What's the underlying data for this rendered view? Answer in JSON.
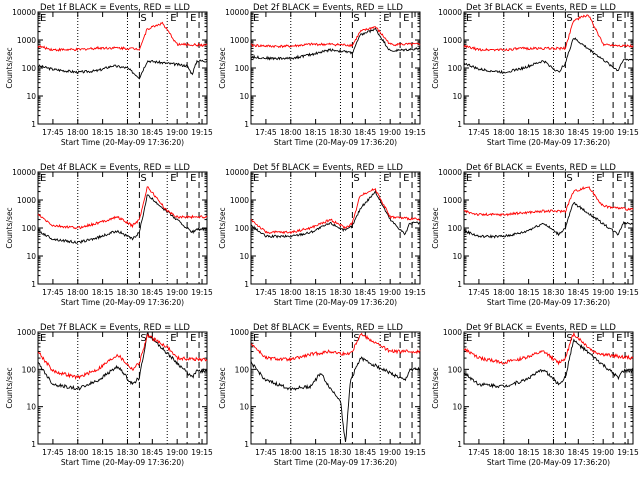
{
  "chart_data": [
    {
      "type": "line",
      "title": "Det 1f BLACK = Events, RED = LLD",
      "xlabel": "Start Time (20-May-09 17:36:20)",
      "ylabel": "Counts/sec",
      "x_ticks": [
        "17:45",
        "18:00",
        "18:15",
        "18:30",
        "18:45",
        "19:00",
        "19:15"
      ],
      "y_ticks": [
        "1",
        "10",
        "100",
        "1000",
        "10000"
      ],
      "scale": "log",
      "markers": [
        "S",
        "E",
        "E"
      ],
      "series": [
        {
          "color": "#000000",
          "points": [
            [
              17.6,
              120
            ],
            [
              17.75,
              90
            ],
            [
              18.0,
              70
            ],
            [
              18.2,
              80
            ],
            [
              18.35,
              120
            ],
            [
              18.5,
              100
            ],
            [
              18.62,
              45
            ],
            [
              18.7,
              180
            ],
            [
              19.1,
              120
            ],
            [
              19.15,
              60
            ],
            [
              19.2,
              180
            ],
            [
              19.3,
              180
            ]
          ]
        },
        {
          "color": "#ff0000",
          "points": [
            [
              17.6,
              600
            ],
            [
              17.75,
              450
            ],
            [
              18.0,
              450
            ],
            [
              18.2,
              520
            ],
            [
              18.4,
              520
            ],
            [
              18.62,
              480
            ],
            [
              18.7,
              2500
            ],
            [
              18.85,
              4000
            ],
            [
              19.0,
              700
            ],
            [
              19.3,
              650
            ]
          ]
        }
      ]
    },
    {
      "type": "line",
      "title": "Det 2f BLACK = Events, RED = LLD",
      "xlabel": "Start Time (20-May-09 17:36:20)",
      "ylabel": "Counts/sec",
      "x_ticks": [
        "17:45",
        "18:00",
        "18:15",
        "18:30",
        "18:45",
        "19:00",
        "19:15"
      ],
      "y_ticks": [
        "1",
        "10",
        "100",
        "1000",
        "10000"
      ],
      "scale": "log",
      "markers": [
        "S",
        "E",
        "E"
      ],
      "series": [
        {
          "color": "#000000",
          "points": [
            [
              17.6,
              250
            ],
            [
              17.8,
              220
            ],
            [
              18.0,
              220
            ],
            [
              18.2,
              300
            ],
            [
              18.4,
              450
            ],
            [
              18.62,
              350
            ],
            [
              18.7,
              1500
            ],
            [
              18.85,
              2500
            ],
            [
              19.0,
              400
            ],
            [
              19.3,
              500
            ]
          ]
        },
        {
          "color": "#ff0000",
          "points": [
            [
              17.6,
              650
            ],
            [
              17.8,
              600
            ],
            [
              18.0,
              600
            ],
            [
              18.2,
              700
            ],
            [
              18.4,
              700
            ],
            [
              18.62,
              650
            ],
            [
              18.7,
              2000
            ],
            [
              18.85,
              3000
            ],
            [
              19.0,
              700
            ],
            [
              19.3,
              700
            ]
          ]
        }
      ]
    },
    {
      "type": "line",
      "title": "Det 3f BLACK = Events, RED = LLD",
      "xlabel": "Start Time (20-May-09 17:36:20)",
      "ylabel": "Counts/sec",
      "x_ticks": [
        "17:45",
        "18:00",
        "18:15",
        "18:30",
        "18:45",
        "19:00",
        "19:15"
      ],
      "y_ticks": [
        "1",
        "10",
        "100",
        "1000",
        "10000"
      ],
      "scale": "log",
      "markers": [
        "S",
        "E",
        "E"
      ],
      "series": [
        {
          "color": "#000000",
          "points": [
            [
              17.6,
              150
            ],
            [
              17.75,
              90
            ],
            [
              18.0,
              70
            ],
            [
              18.2,
              100
            ],
            [
              18.4,
              180
            ],
            [
              18.55,
              70
            ],
            [
              18.62,
              150
            ],
            [
              18.7,
              1200
            ],
            [
              19.15,
              80
            ],
            [
              19.2,
              200
            ],
            [
              19.3,
              200
            ]
          ]
        },
        {
          "color": "#ff0000",
          "points": [
            [
              17.6,
              600
            ],
            [
              17.75,
              450
            ],
            [
              18.0,
              450
            ],
            [
              18.2,
              500
            ],
            [
              18.4,
              500
            ],
            [
              18.62,
              500
            ],
            [
              18.7,
              5000
            ],
            [
              18.85,
              8000
            ],
            [
              19.0,
              700
            ],
            [
              19.3,
              600
            ]
          ]
        }
      ]
    },
    {
      "type": "line",
      "title": "Det 4f BLACK = Events, RED = LLD",
      "xlabel": "Start Time (20-May-09 17:36:20)",
      "ylabel": "Counts/sec",
      "x_ticks": [
        "17:45",
        "18:00",
        "18:15",
        "18:30",
        "18:45",
        "19:00",
        "19:15"
      ],
      "y_ticks": [
        "1",
        "10",
        "100",
        "1000",
        "10000"
      ],
      "scale": "log",
      "markers": [
        "S",
        "E",
        "E"
      ],
      "series": [
        {
          "color": "#000000",
          "points": [
            [
              17.6,
              80
            ],
            [
              17.75,
              40
            ],
            [
              18.0,
              30
            ],
            [
              18.2,
              45
            ],
            [
              18.4,
              80
            ],
            [
              18.55,
              40
            ],
            [
              18.62,
              70
            ],
            [
              18.7,
              1500
            ],
            [
              19.15,
              70
            ],
            [
              19.2,
              90
            ],
            [
              19.3,
              90
            ]
          ]
        },
        {
          "color": "#ff0000",
          "points": [
            [
              17.6,
              300
            ],
            [
              17.75,
              120
            ],
            [
              18.0,
              100
            ],
            [
              18.2,
              150
            ],
            [
              18.4,
              250
            ],
            [
              18.55,
              120
            ],
            [
              18.62,
              200
            ],
            [
              18.7,
              3000
            ],
            [
              18.9,
              400
            ],
            [
              19.0,
              250
            ],
            [
              19.3,
              250
            ]
          ]
        }
      ]
    },
    {
      "type": "line",
      "title": "Det 5f BLACK = Events, RED = LLD",
      "xlabel": "Start Time (20-May-09 17:36:20)",
      "ylabel": "Counts/sec",
      "x_ticks": [
        "17:45",
        "18:00",
        "18:15",
        "18:30",
        "18:45",
        "19:00",
        "19:15"
      ],
      "y_ticks": [
        "1",
        "10",
        "100",
        "1000",
        "10000"
      ],
      "scale": "log",
      "markers": [
        "S",
        "E",
        "E"
      ],
      "series": [
        {
          "color": "#000000",
          "points": [
            [
              17.6,
              120
            ],
            [
              17.75,
              50
            ],
            [
              18.0,
              50
            ],
            [
              18.2,
              70
            ],
            [
              18.4,
              150
            ],
            [
              18.55,
              80
            ],
            [
              18.62,
              120
            ],
            [
              18.7,
              500
            ],
            [
              18.85,
              2000
            ],
            [
              19.0,
              200
            ],
            [
              19.15,
              60
            ],
            [
              19.2,
              150
            ],
            [
              19.3,
              150
            ]
          ]
        },
        {
          "color": "#ff0000",
          "points": [
            [
              17.6,
              200
            ],
            [
              17.75,
              70
            ],
            [
              18.0,
              70
            ],
            [
              18.2,
              100
            ],
            [
              18.4,
              200
            ],
            [
              18.55,
              100
            ],
            [
              18.62,
              150
            ],
            [
              18.7,
              1500
            ],
            [
              18.85,
              2500
            ],
            [
              19.0,
              250
            ],
            [
              19.3,
              200
            ]
          ]
        }
      ]
    },
    {
      "type": "line",
      "title": "Det 6f BLACK = Events, RED = LLD",
      "xlabel": "Start Time (20-May-09 17:36:20)",
      "ylabel": "Counts/sec",
      "x_ticks": [
        "17:45",
        "18:00",
        "18:15",
        "18:30",
        "18:45",
        "19:00",
        "19:15"
      ],
      "y_ticks": [
        "1",
        "10",
        "100",
        "1000",
        "10000"
      ],
      "scale": "log",
      "markers": [
        "S",
        "E",
        "E"
      ],
      "series": [
        {
          "color": "#000000",
          "points": [
            [
              17.6,
              80
            ],
            [
              17.75,
              50
            ],
            [
              18.0,
              50
            ],
            [
              18.2,
              70
            ],
            [
              18.4,
              150
            ],
            [
              18.55,
              60
            ],
            [
              18.62,
              100
            ],
            [
              18.7,
              800
            ],
            [
              19.15,
              60
            ],
            [
              19.2,
              150
            ],
            [
              19.3,
              150
            ]
          ]
        },
        {
          "color": "#ff0000",
          "points": [
            [
              17.6,
              400
            ],
            [
              17.75,
              300
            ],
            [
              18.0,
              300
            ],
            [
              18.2,
              350
            ],
            [
              18.4,
              400
            ],
            [
              18.62,
              400
            ],
            [
              18.7,
              2000
            ],
            [
              18.85,
              3000
            ],
            [
              19.0,
              600
            ],
            [
              19.3,
              450
            ]
          ]
        }
      ]
    },
    {
      "type": "line",
      "title": "Det 7f BLACK = Events, RED = LLD",
      "xlabel": "Start Time (20-May-09 17:36:20)",
      "ylabel": "Counts/sec",
      "x_ticks": [
        "17:45",
        "18:00",
        "18:15",
        "18:30",
        "18:45",
        "19:00",
        "19:15"
      ],
      "y_ticks": [
        "1",
        "10",
        "100",
        "1000"
      ],
      "scale": "log",
      "markers": [
        "S",
        "E",
        "E"
      ],
      "series": [
        {
          "color": "#000000",
          "points": [
            [
              17.6,
              150
            ],
            [
              17.75,
              40
            ],
            [
              18.0,
              30
            ],
            [
              18.2,
              50
            ],
            [
              18.4,
              120
            ],
            [
              18.55,
              40
            ],
            [
              18.62,
              60
            ],
            [
              18.7,
              900
            ],
            [
              19.15,
              60
            ],
            [
              19.2,
              90
            ],
            [
              19.3,
              90
            ]
          ]
        },
        {
          "color": "#ff0000",
          "points": [
            [
              17.6,
              300
            ],
            [
              17.75,
              90
            ],
            [
              18.0,
              60
            ],
            [
              18.2,
              100
            ],
            [
              18.4,
              250
            ],
            [
              18.55,
              100
            ],
            [
              18.62,
              150
            ],
            [
              18.7,
              800
            ],
            [
              18.9,
              400
            ],
            [
              19.0,
              200
            ],
            [
              19.3,
              180
            ]
          ]
        }
      ]
    },
    {
      "type": "line",
      "title": "Det 8f BLACK = Events, RED = LLD",
      "xlabel": "Start Time (20-May-09 17:36:20)",
      "ylabel": "Counts/sec",
      "x_ticks": [
        "17:45",
        "18:00",
        "18:15",
        "18:30",
        "18:45",
        "19:00",
        "19:15"
      ],
      "y_ticks": [
        "1",
        "10",
        "100",
        "1000"
      ],
      "scale": "log",
      "markers": [
        "S",
        "E",
        "E"
      ],
      "series": [
        {
          "color": "#000000",
          "points": [
            [
              17.6,
              150
            ],
            [
              17.75,
              50
            ],
            [
              18.0,
              30
            ],
            [
              18.2,
              35
            ],
            [
              18.3,
              80
            ],
            [
              18.4,
              30
            ],
            [
              18.5,
              15
            ],
            [
              18.55,
              1
            ],
            [
              18.6,
              50
            ],
            [
              18.7,
              200
            ],
            [
              19.15,
              50
            ],
            [
              19.2,
              100
            ],
            [
              19.3,
              100
            ]
          ]
        },
        {
          "color": "#ff0000",
          "points": [
            [
              17.6,
              500
            ],
            [
              17.75,
              200
            ],
            [
              18.0,
              180
            ],
            [
              18.2,
              250
            ],
            [
              18.4,
              300
            ],
            [
              18.55,
              250
            ],
            [
              18.62,
              300
            ],
            [
              18.7,
              900
            ],
            [
              19.0,
              300
            ],
            [
              19.3,
              300
            ]
          ]
        }
      ]
    },
    {
      "type": "line",
      "title": "Det 9f BLACK = Events, RED = LLD",
      "xlabel": "Start Time (20-May-09 17:36:20)",
      "ylabel": "Counts/sec",
      "x_ticks": [
        "17:45",
        "18:00",
        "18:15",
        "18:30",
        "18:45",
        "19:00",
        "19:15"
      ],
      "y_ticks": [
        "1",
        "10",
        "100",
        "1000"
      ],
      "scale": "log",
      "markers": [
        "S",
        "E",
        "E"
      ],
      "series": [
        {
          "color": "#000000",
          "points": [
            [
              17.6,
              80
            ],
            [
              17.75,
              40
            ],
            [
              18.0,
              35
            ],
            [
              18.2,
              50
            ],
            [
              18.4,
              100
            ],
            [
              18.55,
              40
            ],
            [
              18.62,
              60
            ],
            [
              18.7,
              600
            ],
            [
              19.15,
              60
            ],
            [
              19.2,
              90
            ],
            [
              19.3,
              90
            ]
          ]
        },
        {
          "color": "#ff0000",
          "points": [
            [
              17.6,
              350
            ],
            [
              17.75,
              200
            ],
            [
              18.0,
              150
            ],
            [
              18.2,
              200
            ],
            [
              18.4,
              300
            ],
            [
              18.55,
              150
            ],
            [
              18.62,
              200
            ],
            [
              18.7,
              900
            ],
            [
              18.9,
              300
            ],
            [
              19.0,
              250
            ],
            [
              19.3,
              200
            ]
          ]
        }
      ]
    }
  ]
}
